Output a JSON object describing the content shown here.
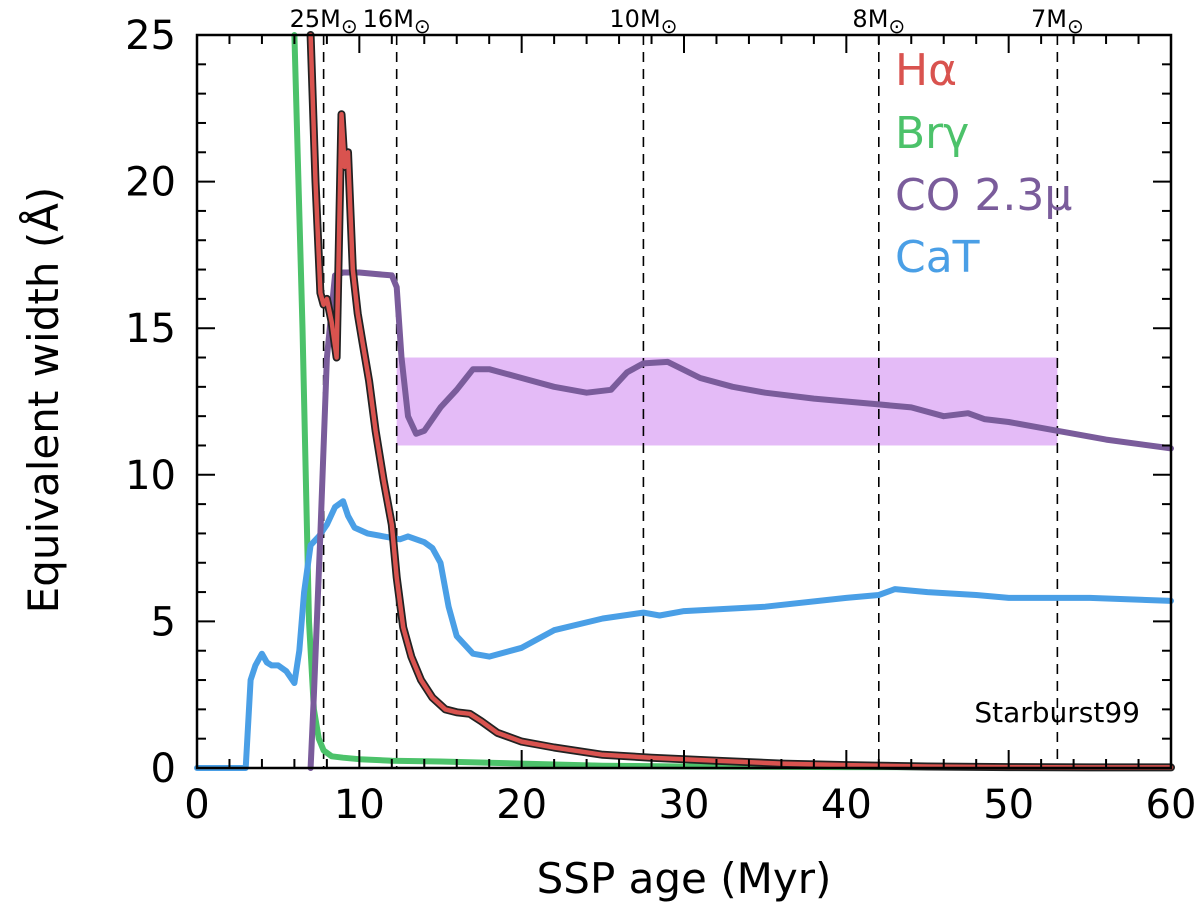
{
  "chart_data": {
    "type": "line",
    "xlabel": "SSP age (Myr)",
    "ylabel": "Equivalent width (Å)",
    "xlim": [
      0,
      60
    ],
    "ylim": [
      0,
      25
    ],
    "x_ticks": [
      "0",
      "10",
      "20",
      "30",
      "40",
      "50",
      "60"
    ],
    "y_ticks": [
      "0",
      "5",
      "10",
      "15",
      "20",
      "25"
    ],
    "annotation": "Starburst99",
    "mass_markers": [
      {
        "label": "25M",
        "x": 7.8
      },
      {
        "label": "16M",
        "x": 12.3
      },
      {
        "label": "10M",
        "x": 27.5
      },
      {
        "label": "8M",
        "x": 42
      },
      {
        "label": "7M",
        "x": 53
      }
    ],
    "shaded_band": {
      "x": [
        12.3,
        53
      ],
      "y": [
        11,
        14
      ],
      "color": "#e4bbf7"
    },
    "series": [
      {
        "name": "Hα",
        "color": "#d9534f",
        "outline": "#222222",
        "x": [
          7.0,
          7.3,
          7.6,
          7.8,
          8.0,
          8.3,
          8.6,
          8.9,
          9.1,
          9.3,
          9.6,
          9.9,
          10.2,
          10.6,
          11.0,
          11.5,
          12.0,
          12.3,
          12.7,
          13.2,
          13.8,
          14.5,
          15.3,
          16.0,
          16.8,
          17.5,
          18.5,
          20.0,
          22.0,
          25.0,
          28.0,
          32.0,
          36.0,
          40.0,
          45.0,
          50.0,
          55.0,
          60.0
        ],
        "y": [
          25.0,
          20.0,
          16.2,
          15.8,
          16.0,
          15.2,
          14.0,
          22.3,
          20.5,
          21.0,
          17.0,
          15.5,
          14.5,
          13.2,
          11.5,
          9.8,
          8.3,
          6.5,
          4.8,
          3.8,
          3.0,
          2.4,
          2.0,
          1.9,
          1.85,
          1.6,
          1.2,
          0.9,
          0.7,
          0.45,
          0.35,
          0.25,
          0.15,
          0.1,
          0.05,
          0.03,
          0.02,
          0.02
        ]
      },
      {
        "name": "Brγ",
        "color": "#4cc26a",
        "x": [
          6.0,
          6.5,
          6.9,
          7.2,
          7.5,
          7.8,
          8.3,
          9.0,
          10.0,
          12.0,
          15.0,
          20.0,
          25.0,
          30.0,
          40.0,
          50.0,
          60.0
        ],
        "y": [
          25.0,
          15.0,
          5.0,
          2.0,
          1.0,
          0.6,
          0.4,
          0.35,
          0.3,
          0.25,
          0.22,
          0.15,
          0.08,
          0.05,
          0.03,
          0.02,
          0.02
        ]
      },
      {
        "name": "CO 2.3μ",
        "color": "#7a5c9b",
        "x": [
          7.0,
          7.2,
          7.6,
          8.0,
          8.5,
          9.0,
          10.0,
          11.0,
          12.0,
          12.3,
          12.6,
          13.0,
          13.5,
          14.0,
          15.0,
          16.0,
          17.0,
          18.0,
          20.0,
          22.0,
          24.0,
          25.5,
          26.5,
          27.5,
          29.0,
          31.0,
          33.0,
          35.0,
          38.0,
          40.0,
          42.0,
          44.0,
          46.0,
          47.5,
          48.5,
          50.0,
          53.0,
          56.0,
          60.0
        ],
        "y": [
          0.0,
          2.5,
          8.0,
          14.0,
          16.8,
          16.9,
          16.9,
          16.85,
          16.8,
          16.4,
          14.0,
          12.0,
          11.4,
          11.5,
          12.3,
          12.9,
          13.6,
          13.6,
          13.3,
          13.0,
          12.8,
          12.9,
          13.5,
          13.8,
          13.85,
          13.3,
          13.0,
          12.8,
          12.6,
          12.5,
          12.4,
          12.3,
          12.0,
          12.1,
          11.9,
          11.8,
          11.5,
          11.2,
          10.9
        ]
      },
      {
        "name": "CaT",
        "color": "#4a9fe6",
        "x": [
          0.0,
          3.0,
          3.3,
          3.6,
          4.0,
          4.3,
          4.6,
          5.0,
          5.5,
          6.0,
          6.3,
          6.6,
          7.0,
          7.5,
          8.0,
          8.5,
          9.0,
          9.3,
          9.7,
          10.5,
          11.5,
          12.5,
          13.0,
          14.0,
          14.5,
          15.0,
          15.5,
          16.0,
          17.0,
          18.0,
          20.0,
          22.0,
          25.0,
          27.5,
          28.5,
          30.0,
          35.0,
          40.0,
          42.0,
          43.0,
          45.0,
          48.0,
          50.0,
          55.0,
          60.0
        ],
        "y": [
          0.0,
          0.0,
          3.0,
          3.5,
          3.9,
          3.6,
          3.5,
          3.5,
          3.3,
          2.9,
          4.0,
          6.0,
          7.6,
          7.9,
          8.3,
          8.9,
          9.1,
          8.6,
          8.2,
          8.0,
          7.9,
          7.8,
          7.9,
          7.7,
          7.5,
          7.0,
          5.5,
          4.5,
          3.9,
          3.8,
          4.1,
          4.7,
          5.1,
          5.3,
          5.2,
          5.35,
          5.5,
          5.8,
          5.9,
          6.1,
          6.0,
          5.9,
          5.8,
          5.8,
          5.7
        ]
      }
    ],
    "legend": {
      "placement": "top-right",
      "entries": [
        "Hα",
        "Brγ",
        "CO 2.3μ",
        "CaT"
      ]
    }
  },
  "labels": {
    "odot": "⊙"
  }
}
